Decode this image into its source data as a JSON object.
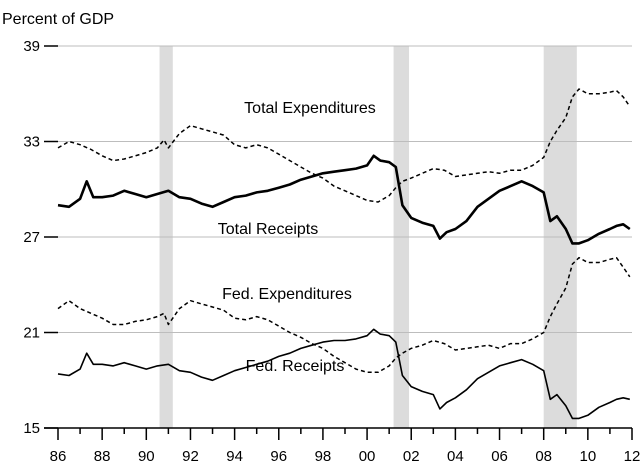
{
  "chart_data": {
    "type": "line",
    "ylabel": "Percent of GDP",
    "ylim": [
      15,
      39
    ],
    "yticks": [
      15,
      21,
      27,
      33,
      39
    ],
    "xlim": [
      1986,
      2012
    ],
    "xticks": [
      1986,
      1988,
      1990,
      1992,
      1994,
      1996,
      1998,
      2000,
      2002,
      2004,
      2006,
      2008,
      2010,
      2012
    ],
    "xtick_labels": [
      "86",
      "88",
      "90",
      "92",
      "94",
      "96",
      "98",
      "00",
      "02",
      "04",
      "06",
      "08",
      "10",
      "12"
    ],
    "grid": true,
    "recessions": [
      [
        1990.6,
        1991.2
      ],
      [
        2001.2,
        2001.9
      ],
      [
        2008.0,
        2009.5
      ]
    ],
    "series": [
      {
        "name": "Total Expenditures",
        "style": "dashed",
        "x": [
          1986.0,
          1986.5,
          1987.0,
          1987.5,
          1988.0,
          1988.5,
          1989.0,
          1989.5,
          1990.0,
          1990.5,
          1990.8,
          1991.0,
          1991.5,
          1992.0,
          1992.5,
          1993.0,
          1993.5,
          1994.0,
          1994.5,
          1995.0,
          1995.5,
          1996.0,
          1996.5,
          1997.0,
          1997.5,
          1998.0,
          1998.5,
          1999.0,
          1999.5,
          2000.0,
          2000.5,
          2001.0,
          2001.3,
          2001.6,
          2002.0,
          2002.5,
          2003.0,
          2003.5,
          2004.0,
          2004.5,
          2005.0,
          2005.5,
          2006.0,
          2006.5,
          2007.0,
          2007.5,
          2008.0,
          2008.3,
          2008.6,
          2009.0,
          2009.3,
          2009.6,
          2010.0,
          2010.5,
          2011.0,
          2011.3,
          2011.6,
          2011.9
        ],
        "values": [
          32.6,
          33.0,
          32.8,
          32.5,
          32.1,
          31.8,
          31.9,
          32.1,
          32.3,
          32.6,
          33.1,
          32.6,
          33.5,
          34.0,
          33.8,
          33.6,
          33.4,
          32.8,
          32.6,
          32.8,
          32.6,
          32.2,
          31.8,
          31.4,
          31.0,
          30.7,
          30.2,
          29.9,
          29.6,
          29.3,
          29.2,
          29.6,
          30.1,
          30.5,
          30.7,
          31.0,
          31.3,
          31.2,
          30.8,
          30.9,
          31.0,
          31.1,
          31.0,
          31.2,
          31.2,
          31.5,
          32.0,
          33.0,
          33.7,
          34.5,
          35.8,
          36.3,
          36.0,
          36.0,
          36.1,
          36.2,
          35.8,
          35.2
        ]
      },
      {
        "name": "Total Receipts",
        "style": "solid-thick",
        "x": [
          1986.0,
          1986.5,
          1987.0,
          1987.3,
          1987.6,
          1988.0,
          1988.5,
          1989.0,
          1989.5,
          1990.0,
          1990.5,
          1991.0,
          1991.5,
          1992.0,
          1992.5,
          1993.0,
          1993.5,
          1994.0,
          1994.5,
          1995.0,
          1995.5,
          1996.0,
          1996.5,
          1997.0,
          1997.5,
          1998.0,
          1998.5,
          1999.0,
          1999.5,
          2000.0,
          2000.3,
          2000.6,
          2001.0,
          2001.3,
          2001.6,
          2002.0,
          2002.5,
          2003.0,
          2003.3,
          2003.6,
          2004.0,
          2004.5,
          2005.0,
          2005.5,
          2006.0,
          2006.5,
          2007.0,
          2007.5,
          2008.0,
          2008.3,
          2008.6,
          2009.0,
          2009.3,
          2009.6,
          2010.0,
          2010.5,
          2011.0,
          2011.3,
          2011.6,
          2011.9
        ],
        "values": [
          29.0,
          28.9,
          29.4,
          30.5,
          29.5,
          29.5,
          29.6,
          29.9,
          29.7,
          29.5,
          29.7,
          29.9,
          29.5,
          29.4,
          29.1,
          28.9,
          29.2,
          29.5,
          29.6,
          29.8,
          29.9,
          30.1,
          30.3,
          30.6,
          30.8,
          31.0,
          31.1,
          31.2,
          31.3,
          31.5,
          32.1,
          31.8,
          31.7,
          31.4,
          29.0,
          28.2,
          27.9,
          27.7,
          26.9,
          27.3,
          27.5,
          28.0,
          28.9,
          29.4,
          29.9,
          30.2,
          30.5,
          30.2,
          29.8,
          28.0,
          28.3,
          27.5,
          26.6,
          26.6,
          26.8,
          27.2,
          27.5,
          27.7,
          27.8,
          27.5
        ]
      },
      {
        "name": "Fed. Expenditures",
        "style": "dashed",
        "x": [
          1986.0,
          1986.5,
          1987.0,
          1987.5,
          1988.0,
          1988.5,
          1989.0,
          1989.5,
          1990.0,
          1990.5,
          1990.8,
          1991.0,
          1991.5,
          1992.0,
          1992.5,
          1993.0,
          1993.5,
          1994.0,
          1994.5,
          1995.0,
          1995.5,
          1996.0,
          1996.5,
          1997.0,
          1997.5,
          1998.0,
          1998.5,
          1999.0,
          1999.5,
          2000.0,
          2000.5,
          2001.0,
          2001.3,
          2001.6,
          2002.0,
          2002.5,
          2003.0,
          2003.5,
          2004.0,
          2004.5,
          2005.0,
          2005.5,
          2006.0,
          2006.5,
          2007.0,
          2007.5,
          2008.0,
          2008.3,
          2008.6,
          2009.0,
          2009.3,
          2009.6,
          2010.0,
          2010.5,
          2011.0,
          2011.3,
          2011.6,
          2011.9
        ],
        "values": [
          22.5,
          23.0,
          22.5,
          22.2,
          21.9,
          21.5,
          21.5,
          21.7,
          21.8,
          22.0,
          22.2,
          21.5,
          22.5,
          23.0,
          22.8,
          22.6,
          22.4,
          21.9,
          21.8,
          22.0,
          21.8,
          21.4,
          21.0,
          20.7,
          20.3,
          20.0,
          19.5,
          19.1,
          18.7,
          18.5,
          18.5,
          18.9,
          19.4,
          19.7,
          20.0,
          20.2,
          20.5,
          20.3,
          19.9,
          20.0,
          20.1,
          20.2,
          20.0,
          20.3,
          20.3,
          20.6,
          21.0,
          22.0,
          22.8,
          23.8,
          25.3,
          25.7,
          25.4,
          25.4,
          25.6,
          25.7,
          25.1,
          24.5
        ]
      },
      {
        "name": "Fed. Receipts",
        "style": "solid",
        "x": [
          1986.0,
          1986.5,
          1987.0,
          1987.3,
          1987.6,
          1988.0,
          1988.5,
          1989.0,
          1989.5,
          1990.0,
          1990.5,
          1991.0,
          1991.5,
          1992.0,
          1992.5,
          1993.0,
          1993.5,
          1994.0,
          1994.5,
          1995.0,
          1995.5,
          1996.0,
          1996.5,
          1997.0,
          1997.5,
          1998.0,
          1998.5,
          1999.0,
          1999.5,
          2000.0,
          2000.3,
          2000.6,
          2001.0,
          2001.3,
          2001.6,
          2002.0,
          2002.5,
          2003.0,
          2003.3,
          2003.6,
          2004.0,
          2004.5,
          2005.0,
          2005.5,
          2006.0,
          2006.5,
          2007.0,
          2007.5,
          2008.0,
          2008.3,
          2008.6,
          2009.0,
          2009.3,
          2009.6,
          2010.0,
          2010.5,
          2011.0,
          2011.3,
          2011.6,
          2011.9
        ],
        "values": [
          18.4,
          18.3,
          18.7,
          19.7,
          19.0,
          19.0,
          18.9,
          19.1,
          18.9,
          18.7,
          18.9,
          19.0,
          18.6,
          18.5,
          18.2,
          18.0,
          18.3,
          18.6,
          18.8,
          19.0,
          19.2,
          19.5,
          19.7,
          20.0,
          20.2,
          20.4,
          20.5,
          20.5,
          20.6,
          20.8,
          21.2,
          20.9,
          20.8,
          20.4,
          18.3,
          17.6,
          17.3,
          17.1,
          16.2,
          16.6,
          16.9,
          17.4,
          18.1,
          18.5,
          18.9,
          19.1,
          19.3,
          19.0,
          18.6,
          16.8,
          17.1,
          16.4,
          15.6,
          15.6,
          15.8,
          16.3,
          16.6,
          16.8,
          16.9,
          16.8
        ]
      }
    ]
  }
}
